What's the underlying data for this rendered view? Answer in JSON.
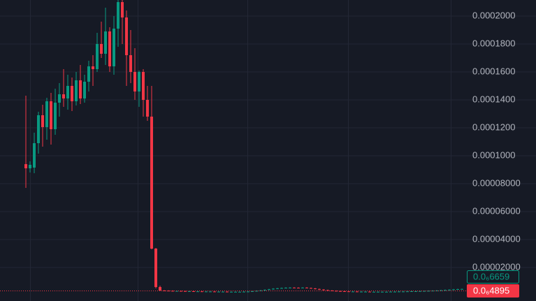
{
  "chart_data": {
    "type": "candlestick",
    "up_color": "#089981",
    "down_color": "#f23645",
    "ylim": [
      -4e-06,
      0.0002115
    ],
    "grid": true,
    "yticks": [
      {
        "value": 2e-05,
        "label": "0.00002000"
      },
      {
        "value": 4e-05,
        "label": "0.00004000"
      },
      {
        "value": 6e-05,
        "label": "0.00006000"
      },
      {
        "value": 8e-05,
        "label": "0.00008000"
      },
      {
        "value": 0.0001,
        "label": "0.0001000"
      },
      {
        "value": 0.00012,
        "label": "0.0001200"
      },
      {
        "value": 0.00014,
        "label": "0.0001400"
      },
      {
        "value": 0.00016,
        "label": "0.0001600"
      },
      {
        "value": 0.00018,
        "label": "0.0001800"
      },
      {
        "value": 0.0002,
        "label": "0.0002000"
      }
    ],
    "price_labels": [
      "0.0₆6659",
      "0.0₆4895"
    ],
    "open": [
      9.4e-05,
      9.1e-05,
      9.15e-05,
      0.000109,
      0.000129,
      0.0001205,
      0.000139,
      0.000119,
      0.000138,
      0.000144,
      0.000141,
      0.00015,
      0.000139,
      0.000154,
      0.000141,
      0.000153,
      0.000164,
      0.000162,
      0.00018,
      0.000173,
      0.000189,
      0.000164,
      0.000191,
      0.00021,
      0.000199,
      0.000172,
      0.00016,
      0.000146,
      0.00016,
      0.00014,
      0.000128,
      3.35e-05,
      6e-06,
      3.5e-06,
      3.4e-06,
      3.3e-06,
      3.2e-06,
      3.2e-06,
      3.1e-06,
      3e-06,
      3e-06,
      2.9e-06,
      2.9e-06,
      2.8e-06,
      2.8e-06,
      2.8e-06,
      2.7e-06,
      2.7e-06,
      2.7e-06,
      2.6e-06,
      2.6e-06,
      2.6e-06,
      2.6e-06,
      2.7e-06,
      2.8e-06,
      3e-06,
      3.3e-06,
      3.6e-06,
      4e-06,
      4.4e-06,
      4.8e-06,
      5.1e-06,
      5.3e-06,
      5.5e-06,
      5.6e-06,
      5.5e-06,
      5.4e-06,
      5.6e-06,
      5.3e-06,
      5e-06,
      4.6e-06,
      4.2e-06,
      3.8e-06,
      3.5e-06,
      3.3e-06,
      3.1e-06,
      3e-06,
      2.9e-06,
      2.8e-06,
      2.8e-06,
      2.7e-06,
      2.7e-06,
      2.7e-06,
      2.6e-06,
      2.6e-06,
      2.6e-06,
      2.6e-06,
      2.6e-06,
      2.7e-06,
      2.7e-06,
      2.8e-06,
      2.8e-06,
      2.9e-06,
      3e-06,
      3e-06,
      3.1e-06,
      3.2e-06,
      3.3e-06,
      3.4e-06,
      3.5e-06,
      3.7e-06,
      3.9e-06,
      4.1e-06,
      4.3e-06,
      4.5e-06
    ],
    "high": [
      0.000143,
      9.6e-05,
      0.0001165,
      0.0001315,
      0.0001365,
      0.0001415,
      0.000145,
      0.000148,
      0.000152,
      0.000162,
      0.000158,
      0.000156,
      0.00016,
      0.000165,
      0.000158,
      0.000168,
      0.000172,
      0.000188,
      0.000196,
      0.000206,
      0.000192,
      0.0002,
      0.000214,
      0.000212,
      0.000204,
      0.00019,
      0.000177,
      0.000161,
      0.000162,
      0.00015,
      0.00015,
      3.4e-05,
      7e-06,
      3.8e-06,
      3.7e-06,
      3.6e-06,
      3.5e-06,
      3.5e-06,
      3.4e-06,
      3.3e-06,
      3.3e-06,
      3.2e-06,
      3.2e-06,
      3.1e-06,
      3.1e-06,
      3.1e-06,
      3e-06,
      3e-06,
      3e-06,
      2.9e-06,
      2.9e-06,
      2.9e-06,
      3e-06,
      3.1e-06,
      3.3e-06,
      3.6e-06,
      3.9e-06,
      4.3e-06,
      4.7e-06,
      5.1e-06,
      5.4e-06,
      5.6e-06,
      5.8e-06,
      5.9e-06,
      5.9e-06,
      5.8e-06,
      5.9e-06,
      5.9e-06,
      5.6e-06,
      5.3e-06,
      4.9e-06,
      4.5e-06,
      4.1e-06,
      3.8e-06,
      3.6e-06,
      3.4e-06,
      3.3e-06,
      3.2e-06,
      3.1e-06,
      3.1e-06,
      3e-06,
      3e-06,
      3e-06,
      2.9e-06,
      2.9e-06,
      2.9e-06,
      2.9e-06,
      3e-06,
      3e-06,
      3.1e-06,
      3.1e-06,
      3.2e-06,
      3.3e-06,
      3.3e-06,
      3.4e-06,
      3.5e-06,
      3.6e-06,
      3.7e-06,
      3.8e-06,
      4e-06,
      4.2e-06,
      4.4e-06,
      4.6e-06,
      4.8e-06,
      4.9e-06
    ],
    "low": [
      7.7e-05,
      8.8e-05,
      8.75e-05,
      0.0001015,
      0.0001065,
      0.0001115,
      0.000108,
      0.000115,
      0.000128,
      0.000135,
      0.000133,
      0.000132,
      0.000136,
      0.000137,
      0.000138,
      0.000146,
      0.00015,
      0.00016,
      0.00017,
      0.000165,
      0.00016,
      0.000158,
      0.000178,
      0.00018,
      0.00015,
      0.000152,
      0.00014,
      0.000135,
      0.000128,
      0.000125,
      3.3e-05,
      5e-06,
      3e-06,
      3.1e-06,
      3e-06,
      2.9e-06,
      2.9e-06,
      2.8e-06,
      2.7e-06,
      2.7e-06,
      2.6e-06,
      2.6e-06,
      2.5e-06,
      2.5e-06,
      2.5e-06,
      2.4e-06,
      2.4e-06,
      2.4e-06,
      2.3e-06,
      2.3e-06,
      2.3e-06,
      2.3e-06,
      2.3e-06,
      2.4e-06,
      2.5e-06,
      2.7e-06,
      3e-06,
      3.3e-06,
      3.7e-06,
      4.1e-06,
      4.5e-06,
      4.8e-06,
      5e-06,
      5.2e-06,
      5.2e-06,
      5.1e-06,
      5.1e-06,
      5e-06,
      4.7e-06,
      4.3e-06,
      3.9e-06,
      3.5e-06,
      3.2e-06,
      3e-06,
      2.8e-06,
      2.7e-06,
      2.6e-06,
      2.5e-06,
      2.5e-06,
      2.4e-06,
      2.4e-06,
      2.4e-06,
      2.3e-06,
      2.3e-06,
      2.3e-06,
      2.3e-06,
      2.3e-06,
      2.3e-06,
      2.4e-06,
      2.4e-06,
      2.5e-06,
      2.5e-06,
      2.6e-06,
      2.7e-06,
      2.7e-06,
      2.8e-06,
      2.9e-06,
      3e-06,
      3.1e-06,
      3.2e-06,
      3.4e-06,
      3.6e-06,
      3.8e-06,
      4e-06,
      4.2e-06
    ],
    "close": [
      9.1e-05,
      9.35e-05,
      0.000109,
      0.000129,
      0.0001205,
      0.000139,
      0.000119,
      0.000138,
      0.000144,
      0.000141,
      0.00015,
      0.000139,
      0.000154,
      0.000141,
      0.000153,
      0.000164,
      0.000162,
      0.00018,
      0.000173,
      0.000189,
      0.000164,
      0.000191,
      0.00021,
      0.000199,
      0.000172,
      0.00016,
      0.000146,
      0.00016,
      0.00014,
      0.000128,
      3.35e-05,
      6e-06,
      3.5e-06,
      3.4e-06,
      3.3e-06,
      3.2e-06,
      3.2e-06,
      3.1e-06,
      3e-06,
      3e-06,
      2.9e-06,
      2.9e-06,
      2.8e-06,
      2.8e-06,
      2.8e-06,
      2.7e-06,
      2.7e-06,
      2.7e-06,
      2.6e-06,
      2.6e-06,
      2.6e-06,
      2.6e-06,
      2.7e-06,
      2.8e-06,
      3e-06,
      3.3e-06,
      3.6e-06,
      4e-06,
      4.4e-06,
      4.8e-06,
      5.1e-06,
      5.3e-06,
      5.5e-06,
      5.6e-06,
      5.5e-06,
      5.4e-06,
      5.6e-06,
      5.3e-06,
      5e-06,
      4.6e-06,
      4.2e-06,
      3.8e-06,
      3.5e-06,
      3.3e-06,
      3.1e-06,
      3e-06,
      2.9e-06,
      2.8e-06,
      2.8e-06,
      2.7e-06,
      2.7e-06,
      2.7e-06,
      2.6e-06,
      2.6e-06,
      2.6e-06,
      2.6e-06,
      2.6e-06,
      2.7e-06,
      2.7e-06,
      2.8e-06,
      2.8e-06,
      2.9e-06,
      3e-06,
      3e-06,
      3.1e-06,
      3.2e-06,
      3.3e-06,
      3.4e-06,
      3.5e-06,
      3.7e-06,
      3.9e-06,
      4.1e-06,
      4.3e-06,
      4.5e-06,
      4.6e-06
    ]
  }
}
